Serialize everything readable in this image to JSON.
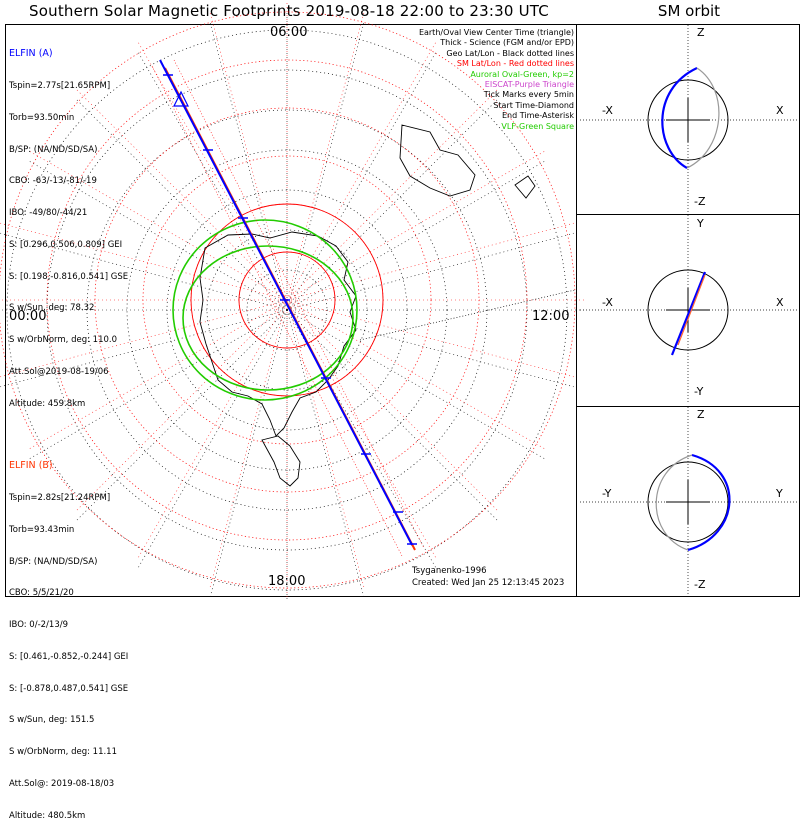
{
  "title": "Southern Solar Magnetic Footprints 2019-08-18 22:00 to 23:30 UTC",
  "orbit_title": "SM orbit",
  "colors": {
    "elfin_a": "#0000ff",
    "elfin_b": "#ff3300",
    "oval": "#22cc00",
    "sm_grid": "#ff0000",
    "eiscat": "#cc44cc"
  },
  "polar": {
    "labels": {
      "top": "06:00",
      "left": "00:00",
      "right": "12:00",
      "bottom": "18:00"
    }
  },
  "legend": [
    {
      "text": "Earth/Oval View Center Time (triangle)",
      "color": "#000000"
    },
    {
      "text": "Thick - Science (FGM and/or EPD)",
      "color": "#000000"
    },
    {
      "text": "Geo Lat/Lon - Black dotted lines",
      "color": "#000000"
    },
    {
      "text": "SM Lat/Lon - Red dotted lines",
      "color": "#ff0000"
    },
    {
      "text": "Auroral Oval-Green, kp=2",
      "color": "#22cc00"
    },
    {
      "text": "EISCAT-Purple Triangle",
      "color": "#cc44cc"
    },
    {
      "text": "Tick Marks every 5min",
      "color": "#000000"
    },
    {
      "text": "Start Time-Diamond",
      "color": "#000000"
    },
    {
      "text": "End Time-Asterisk",
      "color": "#000000"
    },
    {
      "text": "VLF-Green Square",
      "color": "#22cc00"
    }
  ],
  "elfin_a": {
    "name": "ELFIN (A)",
    "lines": [
      "Tspin=2.77s[21.65RPM]",
      "Torb=93.50min",
      "B/SP: (NA/ND/SD/SA)",
      "CBO: -63/-13/-81/-19",
      "IBO: -49/80/-44/21",
      "S: [0.296,0.506,0.809] GEI",
      "S: [0.198,-0.816,0.541] GSE",
      "S w/Sun, deg: 78.32",
      "S w/OrbNorm, deg: 110.0",
      "Att.Sol@2019-08-19/06",
      "Altitude: 459.8km"
    ]
  },
  "elfin_b": {
    "name": "ELFIN (B)",
    "lines": [
      "Tspin=2.82s[21.24RPM]",
      "Torb=93.43min",
      "B/SP: (NA/ND/SD/SA)",
      "CBO: 5/5/21/20",
      "IBO: 0/-2/13/9",
      "S: [0.461,-0.852,-0.244] GEI",
      "S: [-0.878,0.487,0.541] GSE",
      "S w/Sun, deg: 151.5",
      "S w/OrbNorm, deg: 11.11",
      "Att.Sol@: 2019-08-18/03",
      "Altitude: 480.5km"
    ]
  },
  "credits": {
    "model": "Tsyganenko-1996",
    "created": "Created: Wed Jan 25 12:13:45 2023"
  },
  "orbit_panels": [
    {
      "top": "Z",
      "bottom": "-Z",
      "left": "-X",
      "right": "X"
    },
    {
      "top": "Y",
      "bottom": "-Y",
      "left": "-X",
      "right": "X"
    },
    {
      "top": "Z",
      "bottom": "-Z",
      "left": "-Y",
      "right": "Y"
    }
  ],
  "chart_data": {
    "type": "scatter",
    "title": "Southern Solar Magnetic Footprints 2019-08-18 22:00 to 23:30 UTC",
    "projection": "polar, southern hemisphere, MLT around the circle",
    "mlt_labels": [
      "06:00",
      "00:00",
      "12:00",
      "18:00"
    ],
    "series": [
      {
        "name": "ELFIN (A)",
        "color": "#0000ff"
      },
      {
        "name": "ELFIN (B)",
        "color": "#ff3300"
      }
    ]
  }
}
